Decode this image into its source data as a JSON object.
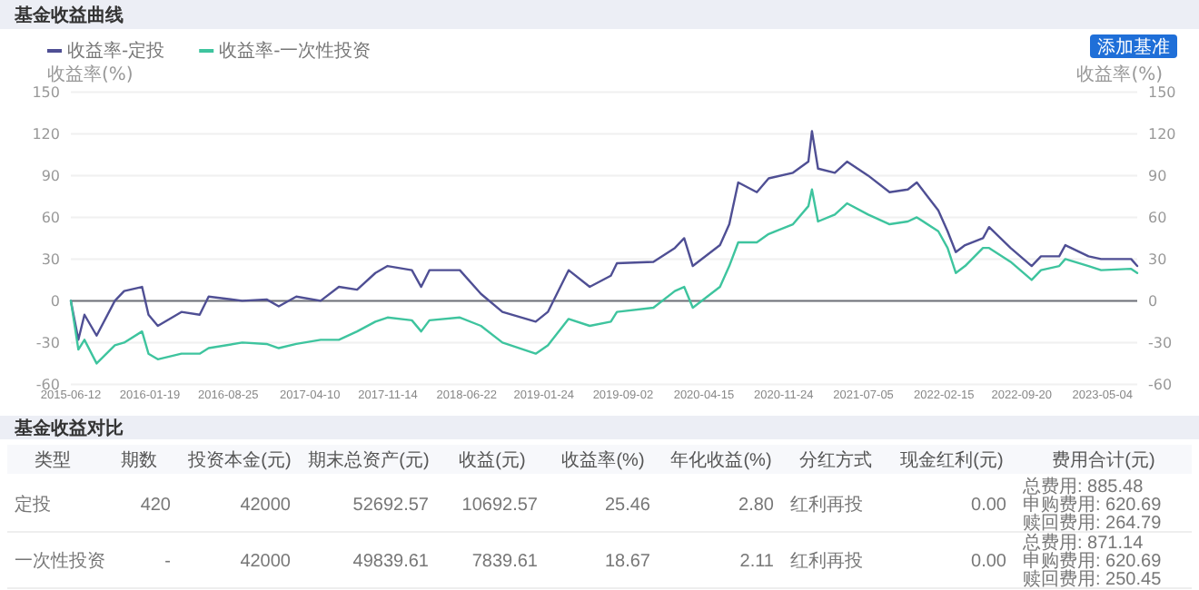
{
  "chart_data": [
    {
      "type": "line",
      "title": "基金收益曲线",
      "ylabel": "收益率(%)",
      "y2label": "收益率(%)",
      "legend": "top left",
      "grid": "y",
      "annotations": [
        "添加基准"
      ],
      "x": [
        "2015-06-12",
        "2015-07-03",
        "2015-07-20",
        "2015-08-23",
        "2015-10-13",
        "2015-11-08",
        "2015-12-28",
        "2016-01-15",
        "2016-02-10",
        "2016-04-16",
        "2016-06-06",
        "2016-07-01",
        "2016-10-03",
        "2016-12-10",
        "2017-01-13",
        "2017-03-03",
        "2017-05-10",
        "2017-06-30",
        "2017-08-20",
        "2017-10-10",
        "2017-11-13",
        "2018-01-20",
        "2018-02-15",
        "2018-03-10",
        "2018-06-03",
        "2018-08-01",
        "2018-09-30",
        "2019-01-01",
        "2019-02-04",
        "2019-04-03",
        "2019-06-01",
        "2019-07-30",
        "2019-08-16",
        "2019-11-26",
        "2020-01-25",
        "2020-02-20",
        "2020-03-15",
        "2020-05-30",
        "2020-06-25",
        "2020-07-20",
        "2020-09-10",
        "2020-10-13",
        "2020-12-20",
        "2021-02-01",
        "2021-02-11",
        "2021-02-28",
        "2021-04-16",
        "2021-05-20",
        "2021-07-18",
        "2021-09-16",
        "2021-11-06",
        "2021-12-01",
        "2022-01-30",
        "2022-02-25",
        "2022-03-20",
        "2022-04-15",
        "2022-06-04",
        "2022-06-21",
        "2022-08-20",
        "2022-10-18",
        "2022-11-13",
        "2023-01-03",
        "2023-01-20",
        "2023-03-26",
        "2023-04-30",
        "2023-07-23",
        "2023-08-09"
      ],
      "series": [
        {
          "name": "收益率-定投",
          "color": "#4f4f94",
          "values": [
            0,
            -28,
            -10,
            -25,
            0,
            7,
            10,
            -10,
            -18,
            -8,
            -10,
            3,
            0,
            1,
            -4,
            3,
            0,
            10,
            8,
            20,
            25,
            22,
            10,
            22,
            22,
            5,
            -8,
            -15,
            -8,
            22,
            10,
            18,
            27,
            28,
            38,
            45,
            25,
            40,
            55,
            85,
            78,
            88,
            92,
            100,
            122,
            95,
            92,
            100,
            90,
            78,
            80,
            85,
            65,
            50,
            35,
            40,
            45,
            53,
            38,
            25,
            32,
            32,
            40,
            32,
            30,
            30,
            25
          ]
        },
        {
          "name": "收益率-一次性投资",
          "color": "#3ec49e",
          "values": [
            0,
            -35,
            -28,
            -45,
            -32,
            -30,
            -22,
            -38,
            -42,
            -38,
            -38,
            -34,
            -30,
            -31,
            -34,
            -31,
            -28,
            -28,
            -22,
            -15,
            -12,
            -14,
            -22,
            -14,
            -12,
            -18,
            -30,
            -38,
            -32,
            -13,
            -18,
            -15,
            -8,
            -5,
            7,
            10,
            -5,
            10,
            25,
            42,
            42,
            48,
            55,
            68,
            80,
            57,
            62,
            70,
            62,
            55,
            57,
            60,
            50,
            38,
            20,
            25,
            38,
            38,
            28,
            15,
            22,
            25,
            30,
            25,
            22,
            23,
            20
          ]
        }
      ],
      "xlim": [
        "2015-06-12",
        "2023-08-09"
      ],
      "xticks": [
        "2015-06-12",
        "2016-01-19",
        "2016-08-25",
        "2017-04-10",
        "2017-11-14",
        "2018-06-22",
        "2019-01-24",
        "2019-09-02",
        "2020-04-15",
        "2020-11-24",
        "2021-07-05",
        "2022-02-15",
        "2022-09-20",
        "2023-05-04"
      ],
      "ylim": [
        -60,
        150
      ],
      "yticks": [
        -60,
        -30,
        0,
        30,
        60,
        90,
        120,
        150
      ],
      "y2lim": [
        -60,
        150
      ],
      "y2ticks": [
        -60,
        -30,
        0,
        30,
        60,
        90,
        120,
        150
      ]
    },
    {
      "type": "other",
      "title": "基金收益对比",
      "annotations": [
        "类型",
        "期数",
        "投资本金(元)",
        "期末总资产(元)",
        "收益(元)",
        "收益率(%)",
        "年化收益(%)",
        "分红方式",
        "现金红利(元)",
        "费用合计(元)",
        "定投",
        "420",
        "42000",
        "52692.57",
        "10692.57",
        "25.46",
        "2.80",
        "红利再投",
        "0.00",
        "总费用: 885.48\n申购费用: 620.69\n赎回费用: 264.79",
        "一次性投资",
        "-",
        "42000",
        "49839.61",
        "7839.61",
        "18.67",
        "2.11",
        "红利再投",
        "0.00",
        "总费用: 871.14\n申购费用: 620.69\n赎回费用: 250.45"
      ]
    }
  ]
}
